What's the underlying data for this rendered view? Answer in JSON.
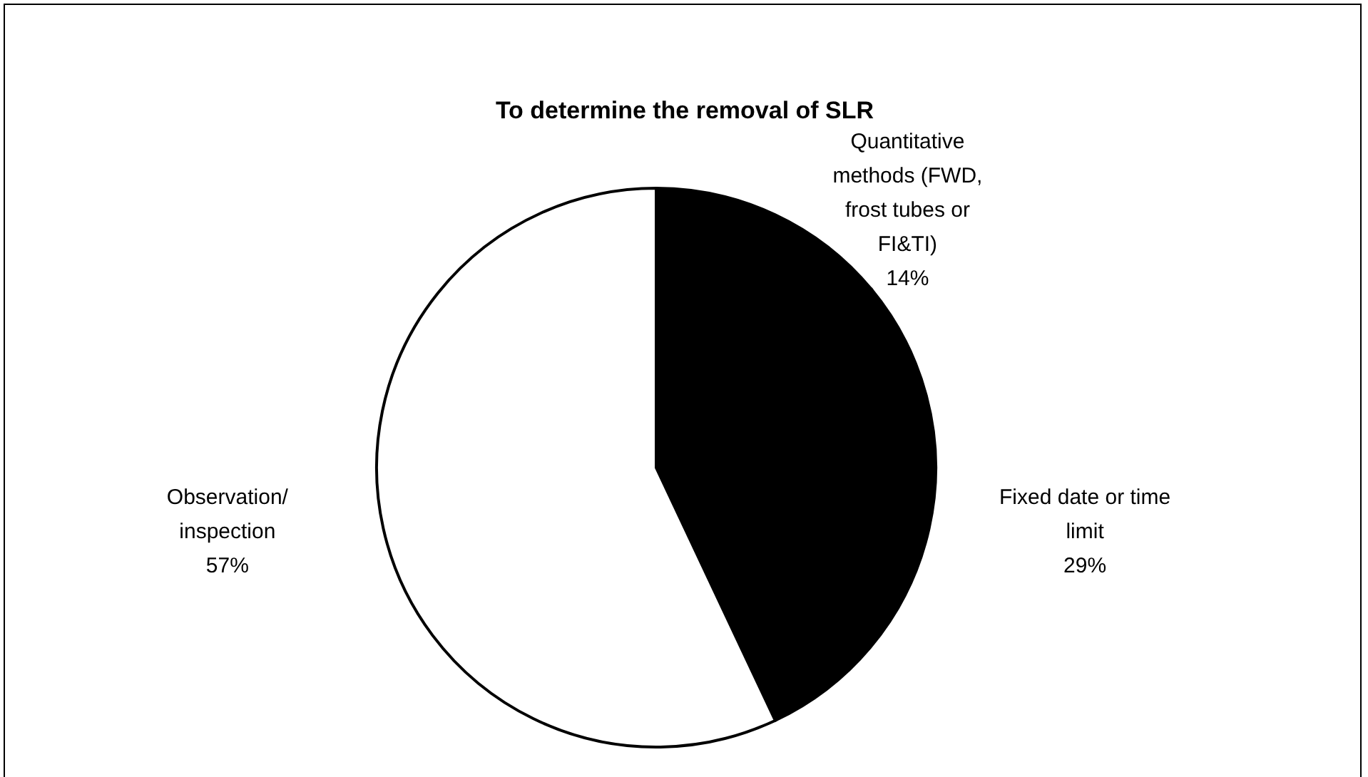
{
  "chart_data": {
    "type": "pie",
    "title": "To determine the removal of SLR",
    "categories": [
      "Quantitative methods (FWD, frost tubes or FI&TI)",
      "Fixed date or time limit",
      "Observation/ inspection"
    ],
    "values": [
      14,
      29,
      57
    ],
    "colors": [
      "#000000",
      "#000000",
      "#ffffff"
    ],
    "value_labels": [
      "14%",
      "29%",
      "57%"
    ]
  }
}
